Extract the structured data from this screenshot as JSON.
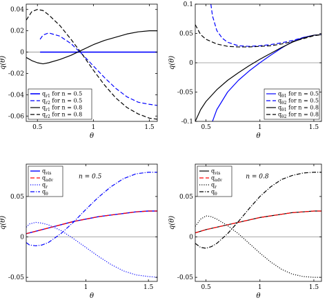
{
  "chart_data": [
    {
      "type": "line",
      "panel": "top-left",
      "xlabel": "θ",
      "ylabel": "q(θ)",
      "xlim": [
        0.4,
        1.5708
      ],
      "ylim": [
        -0.065,
        0.045
      ],
      "xticks": [
        {
          "v": 0.5,
          "t": "0.5"
        },
        {
          "v": 1,
          "t": "1"
        },
        {
          "v": 1.5,
          "t": "1.5"
        }
      ],
      "yticks": [
        {
          "v": -0.06,
          "t": "-0.06"
        },
        {
          "v": -0.04,
          "t": "-0.04"
        },
        {
          "v": -0.02,
          "t": "-0.02"
        },
        {
          "v": 0,
          "t": "0"
        },
        {
          "v": 0.02,
          "t": "0.02"
        },
        {
          "v": 0.04,
          "t": "0.04"
        }
      ],
      "zero_line": true,
      "legend_position": "bottom-left",
      "series": [
        {
          "name": "q_{r1} for n = 0.5",
          "color": "#0000ff",
          "dash": "solid",
          "width": 1.6,
          "x": [
            0.524,
            0.6,
            0.7,
            0.8,
            0.9,
            1.0,
            1.1,
            1.2,
            1.3,
            1.4,
            1.5,
            1.5708
          ],
          "y": [
            0,
            0,
            0,
            0,
            0,
            0,
            0,
            0,
            0,
            0,
            0,
            0
          ]
        },
        {
          "name": "q_{r2} for n = 0.5",
          "color": "#0000ff",
          "dash": "dashed",
          "width": 1.2,
          "x": [
            0.524,
            0.55,
            0.6,
            0.7,
            0.8,
            0.9,
            1.0,
            1.1,
            1.2,
            1.3,
            1.4,
            1.5,
            1.5708
          ],
          "y": [
            0.012,
            0.016,
            0.018,
            0.015,
            0.008,
            -0.002,
            -0.013,
            -0.024,
            -0.034,
            -0.042,
            -0.047,
            -0.049,
            -0.05
          ]
        },
        {
          "name": "q_{r1} for n = 0.8",
          "color": "#000000",
          "dash": "solid",
          "width": 1.2,
          "x": [
            0.4,
            0.45,
            0.5,
            0.55,
            0.6,
            0.7,
            0.8,
            0.9,
            1.0,
            1.1,
            1.2,
            1.3,
            1.4,
            1.5,
            1.5708
          ],
          "y": [
            -0.005,
            -0.008,
            -0.01,
            -0.011,
            -0.01,
            -0.007,
            -0.003,
            0.002,
            0.007,
            0.011,
            0.014,
            0.017,
            0.019,
            0.02,
            0.02
          ]
        },
        {
          "name": "q_{r2} for n = 0.8",
          "color": "#000000",
          "dash": "dashed",
          "width": 1.2,
          "x": [
            0.4,
            0.45,
            0.5,
            0.55,
            0.6,
            0.7,
            0.8,
            0.9,
            1.0,
            1.1,
            1.2,
            1.3,
            1.4,
            1.5,
            1.5708
          ],
          "y": [
            0.03,
            0.038,
            0.04,
            0.039,
            0.035,
            0.025,
            0.012,
            -0.002,
            -0.017,
            -0.031,
            -0.043,
            -0.052,
            -0.058,
            -0.062,
            -0.063
          ]
        }
      ]
    },
    {
      "type": "line",
      "panel": "top-right",
      "xlabel": "θ",
      "ylabel": "q(θ)",
      "xlim": [
        0.4,
        1.5708
      ],
      "ylim": [
        -0.1,
        0.1
      ],
      "xticks": [
        {
          "v": 0.5,
          "t": "0.5"
        },
        {
          "v": 1,
          "t": "1"
        },
        {
          "v": 1.5,
          "t": "1.5"
        }
      ],
      "yticks": [
        {
          "v": -0.1,
          "t": "-0.1"
        },
        {
          "v": -0.05,
          "t": "-0.05"
        },
        {
          "v": 0,
          "t": "0"
        },
        {
          "v": 0.05,
          "t": "0.05"
        },
        {
          "v": 0.1,
          "t": "0.1"
        }
      ],
      "zero_line": true,
      "legend_position": "bottom-right",
      "series": [
        {
          "name": "q_{θ1} for n = 0.5",
          "color": "#0000ff",
          "dash": "solid",
          "width": 1.2,
          "x": [
            0.56,
            0.6,
            0.7,
            0.8,
            0.9,
            1.0,
            1.1,
            1.2,
            1.3,
            1.4,
            1.5,
            1.5708
          ],
          "y": [
            -0.1,
            -0.08,
            -0.05,
            -0.03,
            -0.014,
            0.0,
            0.013,
            0.025,
            0.036,
            0.043,
            0.047,
            0.048
          ]
        },
        {
          "name": "q_{θ2} for n = 0.5",
          "color": "#0000ff",
          "dash": "dashed",
          "width": 1.2,
          "x": [
            0.545,
            0.56,
            0.6,
            0.65,
            0.7,
            0.8,
            0.9,
            1.0,
            1.1,
            1.2,
            1.3,
            1.4,
            1.5,
            1.5708
          ],
          "y": [
            0.1,
            0.08,
            0.055,
            0.042,
            0.035,
            0.029,
            0.028,
            0.029,
            0.031,
            0.034,
            0.038,
            0.043,
            0.047,
            0.048
          ]
        },
        {
          "name": "q_{θ1} for n = 0.8",
          "color": "#000000",
          "dash": "solid",
          "width": 1.2,
          "x": [
            0.4,
            0.45,
            0.5,
            0.6,
            0.7,
            0.8,
            0.9,
            1.0,
            1.1,
            1.2,
            1.3,
            1.4,
            1.5,
            1.5708
          ],
          "y": [
            -0.1,
            -0.08,
            -0.066,
            -0.046,
            -0.03,
            -0.017,
            -0.005,
            0.006,
            0.016,
            0.026,
            0.035,
            0.042,
            0.047,
            0.048
          ]
        },
        {
          "name": "q_{θ2} for n = 0.8",
          "color": "#000000",
          "dash": "dashed",
          "width": 1.2,
          "x": [
            0.4,
            0.45,
            0.5,
            0.6,
            0.7,
            0.8,
            0.9,
            1.0,
            1.1,
            1.2,
            1.3,
            1.4,
            1.5,
            1.5708
          ],
          "y": [
            0.065,
            0.048,
            0.04,
            0.032,
            0.028,
            0.027,
            0.027,
            0.028,
            0.029,
            0.032,
            0.036,
            0.041,
            0.046,
            0.048
          ]
        }
      ]
    },
    {
      "type": "line",
      "panel": "bottom-left",
      "xlabel": "θ",
      "ylabel": "q(θ)",
      "annotation": "n = 0.5",
      "xlim": [
        0.5236,
        1.5708
      ],
      "ylim": [
        -0.055,
        0.09
      ],
      "xticks": [
        {
          "v": 0.5,
          "t": "0.5"
        },
        {
          "v": 1,
          "t": "1"
        },
        {
          "v": 1.5,
          "t": "1.5"
        }
      ],
      "yticks": [
        {
          "v": -0.05,
          "t": "-0.05"
        },
        {
          "v": 0,
          "t": "0"
        },
        {
          "v": 0.05,
          "t": "0.05"
        }
      ],
      "zero_line": true,
      "legend_position": "top-left",
      "series": [
        {
          "name": "q_{vis}",
          "color": "#0000ff",
          "dash": "solid",
          "width": 1.4,
          "x": [
            0.5236,
            0.6,
            0.7,
            0.8,
            0.9,
            1.0,
            1.1,
            1.2,
            1.3,
            1.4,
            1.5,
            1.5708
          ],
          "y": [
            0.004,
            0.007,
            0.011,
            0.015,
            0.019,
            0.022,
            0.025,
            0.027,
            0.029,
            0.031,
            0.032,
            0.032
          ]
        },
        {
          "name": "q_{adv}",
          "color": "#ff0000",
          "dash": "dashed",
          "width": 1.2,
          "x": [
            0.5236,
            0.6,
            0.7,
            0.8,
            0.9,
            1.0,
            1.1,
            1.2,
            1.3,
            1.4,
            1.5,
            1.5708
          ],
          "y": [
            0.004,
            0.007,
            0.011,
            0.015,
            0.019,
            0.022,
            0.025,
            0.027,
            0.029,
            0.031,
            0.032,
            0.032
          ]
        },
        {
          "name": "q_r",
          "color": "#0000ff",
          "dash": "dotted",
          "width": 1.2,
          "x": [
            0.5236,
            0.55,
            0.6,
            0.65,
            0.7,
            0.8,
            0.9,
            1.0,
            1.1,
            1.2,
            1.3,
            1.4,
            1.5,
            1.5708
          ],
          "y": [
            0.012,
            0.016,
            0.018,
            0.017,
            0.015,
            0.008,
            -0.002,
            -0.013,
            -0.024,
            -0.034,
            -0.042,
            -0.047,
            -0.049,
            -0.05
          ]
        },
        {
          "name": "q_θ",
          "color": "#0000ff",
          "dash": "dashdot",
          "width": 1.2,
          "x": [
            0.5236,
            0.55,
            0.6,
            0.65,
            0.7,
            0.8,
            0.9,
            1.0,
            1.1,
            1.2,
            1.3,
            1.4,
            1.5,
            1.5708
          ],
          "y": [
            -0.007,
            -0.01,
            -0.011,
            -0.01,
            -0.007,
            0.004,
            0.018,
            0.034,
            0.049,
            0.062,
            0.072,
            0.078,
            0.08,
            0.08
          ]
        }
      ]
    },
    {
      "type": "line",
      "panel": "bottom-right",
      "xlabel": "θ",
      "ylabel": "q(θ)",
      "annotation": "n = 0.8",
      "xlim": [
        0.4,
        1.5708
      ],
      "ylim": [
        -0.055,
        0.09
      ],
      "xticks": [
        {
          "v": 0.5,
          "t": "0.5"
        },
        {
          "v": 1,
          "t": "1"
        },
        {
          "v": 1.5,
          "t": "1.5"
        }
      ],
      "yticks": [
        {
          "v": -0.05,
          "t": "-0.05"
        },
        {
          "v": 0,
          "t": "0"
        },
        {
          "v": 0.05,
          "t": "0.05"
        }
      ],
      "zero_line": true,
      "legend_position": "top-left",
      "series": [
        {
          "name": "q_{vis}",
          "color": "#000000",
          "dash": "solid",
          "width": 1.2,
          "x": [
            0.4,
            0.5,
            0.6,
            0.7,
            0.8,
            0.9,
            1.0,
            1.1,
            1.2,
            1.3,
            1.4,
            1.5,
            1.5708
          ],
          "y": [
            0.005,
            0.009,
            0.012,
            0.015,
            0.018,
            0.021,
            0.024,
            0.026,
            0.028,
            0.03,
            0.031,
            0.032,
            0.032
          ]
        },
        {
          "name": "q_{adv}",
          "color": "#ff0000",
          "dash": "dashed",
          "width": 1.2,
          "x": [
            0.4,
            0.5,
            0.6,
            0.7,
            0.8,
            0.9,
            1.0,
            1.1,
            1.2,
            1.3,
            1.4,
            1.5,
            1.5708
          ],
          "y": [
            0.005,
            0.009,
            0.012,
            0.015,
            0.018,
            0.021,
            0.024,
            0.026,
            0.028,
            0.03,
            0.031,
            0.032,
            0.032
          ]
        },
        {
          "name": "q_r",
          "color": "#000000",
          "dash": "dotted",
          "width": 1.2,
          "x": [
            0.4,
            0.45,
            0.5,
            0.55,
            0.6,
            0.7,
            0.8,
            0.9,
            1.0,
            1.1,
            1.2,
            1.3,
            1.4,
            1.5,
            1.5708
          ],
          "y": [
            0.013,
            0.022,
            0.026,
            0.025,
            0.022,
            0.014,
            0.004,
            -0.008,
            -0.02,
            -0.031,
            -0.04,
            -0.046,
            -0.049,
            -0.05,
            -0.05
          ]
        },
        {
          "name": "q_θ",
          "color": "#000000",
          "dash": "dashdot",
          "width": 1.2,
          "x": [
            0.4,
            0.45,
            0.5,
            0.55,
            0.6,
            0.7,
            0.8,
            0.9,
            1.0,
            1.1,
            1.2,
            1.3,
            1.4,
            1.5,
            1.5708
          ],
          "y": [
            -0.008,
            -0.013,
            -0.014,
            -0.012,
            -0.008,
            0.004,
            0.019,
            0.035,
            0.05,
            0.062,
            0.071,
            0.076,
            0.079,
            0.08,
            0.08
          ]
        }
      ]
    }
  ]
}
